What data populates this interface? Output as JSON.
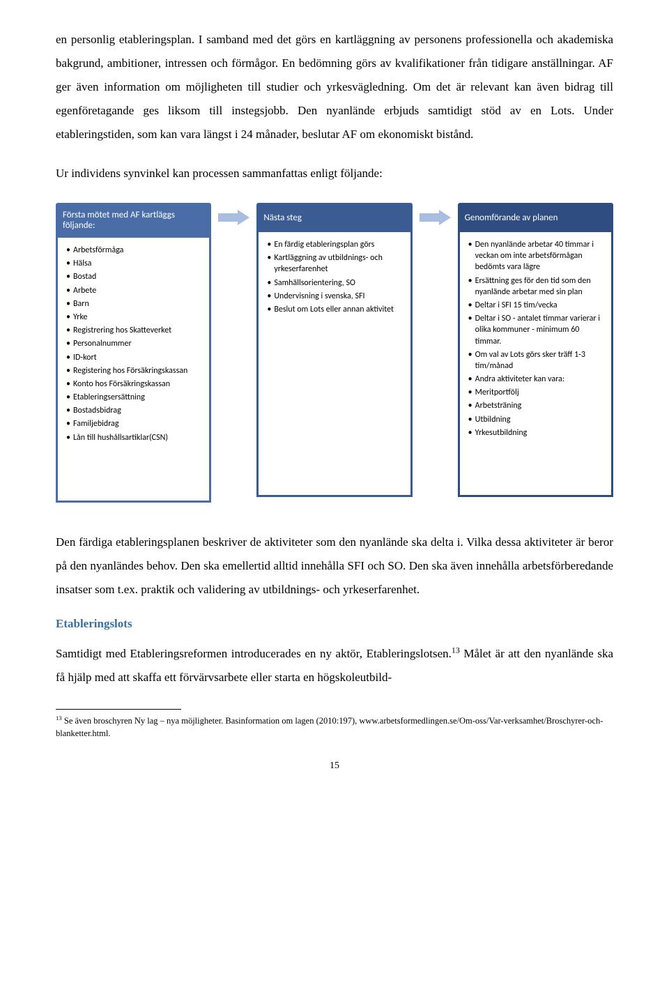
{
  "paragraphs": {
    "p1": "en personlig etableringsplan. I samband med det görs en kartläggning av personens professionella och akademiska bakgrund, ambitioner, intressen och förmågor. En bedömning görs av kvalifikationer från tidigare anställningar. AF ger även information om möjligheten till studier och yrkesvägledning. Om det är relevant kan även bidrag till egenföretagande ges liksom till instegsjobb. Den nyanlände erbjuds samtidigt stöd av en Lots. Under etableringstiden, som kan vara längst i 24 månader, beslutar AF om ekonomiskt bistånd.",
    "p2": "Ur individens synvinkel kan processen sammanfattas enligt följande:",
    "p3": "Den färdiga etableringsplanen beskriver de aktiviteter som den nyanlände ska delta i. Vilka dessa aktiviteter är beror på den nyanländes behov. Den ska emellertid alltid innehålla SFI och SO. Den ska även innehålla arbetsförberedande insatser som t.ex. praktik och validering av utbildnings- och yrkeserfarenhet.",
    "p4a": "Samtidigt med Etableringsreformen introducerades en ny aktör, Etableringslotsen.",
    "p4b": " Målet är att den nyanlände ska få hjälp med att skaffa ett förvärvsarbete eller starta en högskoleutbild-"
  },
  "subheading": "Etableringslots",
  "subheading_color": "#3b6fa0",
  "footnote_ref": "13",
  "footnote": " Se även broschyren Ny lag – nya möjligheter. Basinformation om lagen (2010:197), www.arbetsformedlingen.se/Om-oss/Var-verksamhet/Broschyrer-och-blanketter.html.",
  "pagenum": "15",
  "arrow_fill": "#a9bde0",
  "columns": [
    {
      "header": "Första mötet med AF kartläggs följande:",
      "header_bg": "#4a6da8",
      "border_color": "#4a6da8",
      "items": [
        " Arbetsförmåga",
        "Hälsa",
        "Bostad",
        "Arbete",
        "Barn",
        "Yrke",
        "Registrering hos Skatteverket",
        "Personalnummer",
        "ID-kort",
        "Registering hos Försäkringskassan",
        "Konto hos Försäkringskassan",
        "Etableringsersättning",
        "Bostadsbidrag",
        "Familjebidrag",
        "Lån till hushållsartiklar(CSN)"
      ]
    },
    {
      "header": "Nästa steg",
      "header_bg": "#3b5c93",
      "border_color": "#3b5c93",
      "items": [
        " En färdig etableringsplan görs",
        "Kartläggning av utbildnings- och yrkeserfarenhet",
        "Samhällsorientering, SO",
        "Undervisning i svenska, SFI",
        "Beslut om Lots eller annan aktivitet"
      ]
    },
    {
      "header": "Genomförande av planen",
      "header_bg": "#2f4d80",
      "border_color": "#2f4d80",
      "items": [
        " Den nyanlände arbetar 40 timmar i veckan om inte arbetsförmågan bedömts vara lägre",
        "Ersättning ges för den tid som den nyanlände arbetar med sin plan",
        "Deltar i SFI 15 tim/vecka",
        "Deltar i SO - antalet timmar varierar i olika kommuner - minimum 60 timmar.",
        "Om val av Lots görs sker träff 1-3 tim/månad",
        "Andra aktiviteter kan vara:",
        "Meritportfölj",
        "Arbetsträning",
        "Utbildning",
        "Yrkesutbildning"
      ]
    }
  ]
}
